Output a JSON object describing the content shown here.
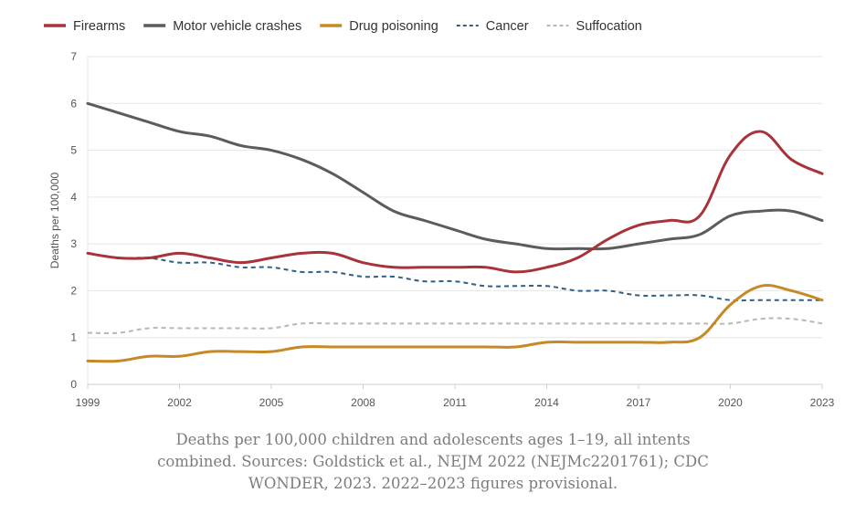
{
  "chart_data": {
    "type": "line",
    "title": "",
    "xlabel": "",
    "ylabel": "Deaths per 100,000",
    "ylim": [
      0,
      7
    ],
    "xlim": [
      1999,
      2023
    ],
    "yticks": [
      "0",
      "1",
      "2",
      "3",
      "4",
      "5",
      "6",
      "7"
    ],
    "xticks": [
      "1999",
      "2002",
      "2005",
      "2008",
      "2011",
      "2014",
      "2017",
      "2020",
      "2023"
    ],
    "x": [
      1999,
      2000,
      2001,
      2002,
      2003,
      2004,
      2005,
      2006,
      2007,
      2008,
      2009,
      2010,
      2011,
      2012,
      2013,
      2014,
      2015,
      2016,
      2017,
      2018,
      2019,
      2020,
      2021,
      2022,
      2023
    ],
    "series": [
      {
        "name": "Firearms",
        "color": "#a8333a",
        "style": "solid",
        "values": [
          2.8,
          2.7,
          2.7,
          2.8,
          2.7,
          2.6,
          2.7,
          2.8,
          2.8,
          2.6,
          2.5,
          2.5,
          2.5,
          2.5,
          2.4,
          2.5,
          2.7,
          3.1,
          3.4,
          3.5,
          3.6,
          4.9,
          5.4,
          4.8,
          4.5
        ]
      },
      {
        "name": "Motor vehicle crashes",
        "color": "#5c5c5c",
        "style": "solid",
        "values": [
          6.0,
          5.8,
          5.6,
          5.4,
          5.3,
          5.1,
          5.0,
          4.8,
          4.5,
          4.1,
          3.7,
          3.5,
          3.3,
          3.1,
          3.0,
          2.9,
          2.9,
          2.9,
          3.0,
          3.1,
          3.2,
          3.6,
          3.7,
          3.7,
          3.5
        ]
      },
      {
        "name": "Drug poisoning",
        "color": "#c58a26",
        "style": "solid",
        "values": [
          0.5,
          0.5,
          0.6,
          0.6,
          0.7,
          0.7,
          0.7,
          0.8,
          0.8,
          0.8,
          0.8,
          0.8,
          0.8,
          0.8,
          0.8,
          0.9,
          0.9,
          0.9,
          0.9,
          0.9,
          1.0,
          1.7,
          2.1,
          2.0,
          1.8
        ]
      },
      {
        "name": "Cancer",
        "color": "#2d5f8b",
        "style": "dashed",
        "values": [
          2.8,
          2.7,
          2.7,
          2.6,
          2.6,
          2.5,
          2.5,
          2.4,
          2.4,
          2.3,
          2.3,
          2.2,
          2.2,
          2.1,
          2.1,
          2.1,
          2.0,
          2.0,
          1.9,
          1.9,
          1.9,
          1.8,
          1.8,
          1.8,
          1.8
        ]
      },
      {
        "name": "Suffocation",
        "color": "#b8b8b8",
        "style": "dashed",
        "values": [
          1.1,
          1.1,
          1.2,
          1.2,
          1.2,
          1.2,
          1.2,
          1.3,
          1.3,
          1.3,
          1.3,
          1.3,
          1.3,
          1.3,
          1.3,
          1.3,
          1.3,
          1.3,
          1.3,
          1.3,
          1.3,
          1.3,
          1.4,
          1.4,
          1.3
        ]
      }
    ],
    "grid": true,
    "legend_position": "top-left"
  },
  "caption": {
    "line1": "Deaths per 100,000 children and adolescents ages 1–19, all intents",
    "line2": "combined. Sources: Goldstick et al., NEJM 2022 (NEJMc2201761); CDC",
    "line3": "WONDER, 2023. 2022–2023 figures provisional."
  }
}
